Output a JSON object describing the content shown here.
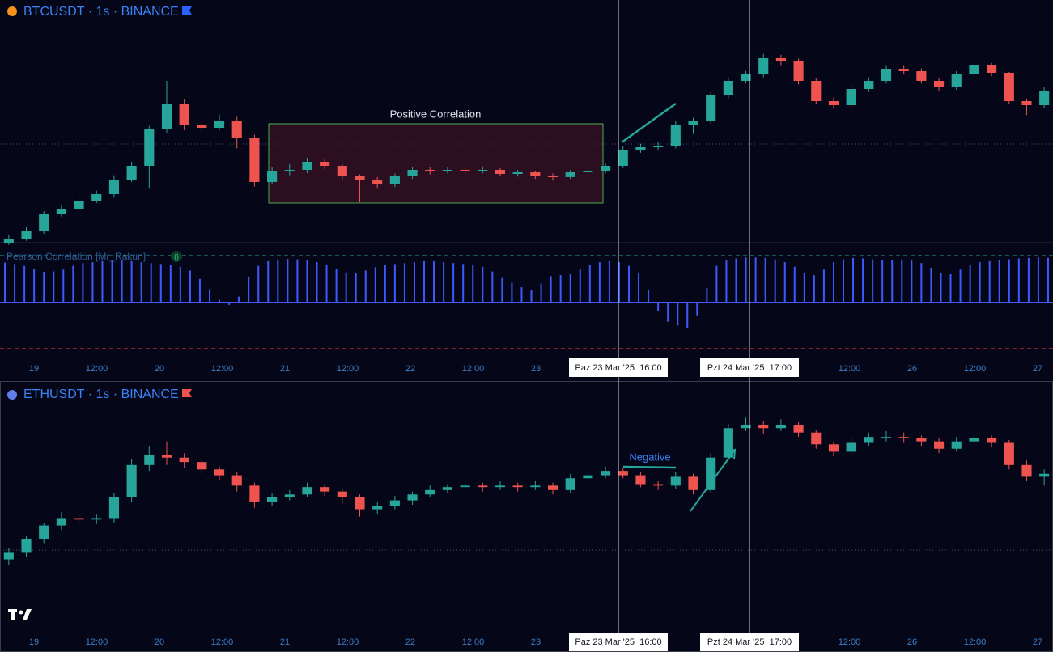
{
  "chart_data": [
    {
      "type": "candlestick",
      "title": "BTCUSDT · 1s · BINANCE",
      "up_color": "#26a69a",
      "down_color": "#ef5350",
      "ylim": [
        83100,
        88500
      ],
      "annotations": [
        "Positive Correlation"
      ],
      "ohlc": [
        [
          83100,
          83280,
          83050,
          83190
        ],
        [
          83190,
          83460,
          83140,
          83370
        ],
        [
          83370,
          83800,
          83300,
          83730
        ],
        [
          83730,
          83950,
          83680,
          83856
        ],
        [
          83856,
          84120,
          83800,
          84036
        ],
        [
          84036,
          84260,
          83980,
          84180
        ],
        [
          84180,
          84600,
          84100,
          84504
        ],
        [
          84504,
          84900,
          84450,
          84810
        ],
        [
          84810,
          85700,
          84300,
          85620
        ],
        [
          85620,
          86700,
          85550,
          86196
        ],
        [
          86196,
          86300,
          85600,
          85710
        ],
        [
          85710,
          85800,
          85560,
          85656
        ],
        [
          85656,
          85950,
          85600,
          85800
        ],
        [
          85800,
          85900,
          85200,
          85440
        ],
        [
          85440,
          85500,
          84350,
          84450
        ],
        [
          84450,
          84780,
          84400,
          84684
        ],
        [
          84684,
          84850,
          84600,
          84720
        ],
        [
          84720,
          84990,
          84650,
          84900
        ],
        [
          84900,
          84960,
          84740,
          84810
        ],
        [
          84810,
          84850,
          84500,
          84576
        ],
        [
          84576,
          84620,
          84000,
          84504
        ],
        [
          84504,
          84560,
          84300,
          84396
        ],
        [
          84396,
          84640,
          84340,
          84576
        ],
        [
          84576,
          84790,
          84520,
          84720
        ],
        [
          84720,
          84780,
          84620,
          84684
        ],
        [
          84684,
          84790,
          84640,
          84720
        ],
        [
          84720,
          84770,
          84620,
          84684
        ],
        [
          84684,
          84800,
          84640,
          84720
        ],
        [
          84720,
          84760,
          84580,
          84630
        ],
        [
          84630,
          84720,
          84570,
          84666
        ],
        [
          84666,
          84700,
          84520,
          84576
        ],
        [
          84576,
          84640,
          84480,
          84560
        ],
        [
          84560,
          84720,
          84520,
          84666
        ],
        [
          84666,
          84740,
          84620,
          84684
        ],
        [
          84684,
          84880,
          84640,
          84810
        ],
        [
          84810,
          85240,
          84760,
          85170
        ],
        [
          85170,
          85300,
          85100,
          85224
        ],
        [
          85224,
          85340,
          85150,
          85260
        ],
        [
          85260,
          85800,
          85200,
          85710
        ],
        [
          85710,
          85880,
          85520,
          85800
        ],
        [
          85800,
          86450,
          85750,
          86376
        ],
        [
          86376,
          86780,
          86300,
          86700
        ],
        [
          86700,
          86920,
          86650,
          86844
        ],
        [
          86844,
          87300,
          86780,
          87204
        ],
        [
          87204,
          87280,
          87050,
          87150
        ],
        [
          87150,
          87200,
          86620,
          86700
        ],
        [
          86700,
          86760,
          86180,
          86250
        ],
        [
          86250,
          86330,
          86080,
          86160
        ],
        [
          86160,
          86600,
          86100,
          86520
        ],
        [
          86520,
          86780,
          86450,
          86700
        ],
        [
          86700,
          87050,
          86640,
          86970
        ],
        [
          86970,
          87050,
          86840,
          86916
        ],
        [
          86916,
          86980,
          86640,
          86700
        ],
        [
          86700,
          86760,
          86480,
          86556
        ],
        [
          86556,
          86920,
          86500,
          86844
        ],
        [
          86844,
          87120,
          86780,
          87060
        ],
        [
          87060,
          87100,
          86800,
          86880
        ],
        [
          86880,
          86900,
          86180,
          86250
        ],
        [
          86250,
          86300,
          85940,
          86160
        ],
        [
          86160,
          86560,
          86100,
          86484
        ]
      ]
    },
    {
      "type": "bar",
      "title": "Pearson Correlation [Mr_Rakun]",
      "color": "#3d5afe",
      "ylim": [
        -1,
        1
      ],
      "levels": [
        {
          "value": 1,
          "color": "#26a69a"
        },
        {
          "value": -1,
          "color": "#f23645"
        }
      ],
      "values": [
        0.85,
        0.82,
        0.78,
        0.72,
        0.65,
        0.66,
        0.7,
        0.78,
        0.84,
        0.86,
        0.88,
        0.9,
        0.9,
        0.88,
        0.86,
        0.84,
        0.82,
        0.8,
        0.76,
        0.68,
        0.5,
        0.28,
        0.05,
        -0.06,
        0.12,
        0.55,
        0.78,
        0.88,
        0.92,
        0.93,
        0.92,
        0.9,
        0.86,
        0.8,
        0.72,
        0.64,
        0.62,
        0.68,
        0.75,
        0.8,
        0.82,
        0.84,
        0.86,
        0.88,
        0.88,
        0.86,
        0.84,
        0.82,
        0.8,
        0.76,
        0.66,
        0.52,
        0.42,
        0.32,
        0.26,
        0.4,
        0.56,
        0.58,
        0.6,
        0.7,
        0.8,
        0.86,
        0.88,
        0.86,
        0.78,
        0.62,
        0.25,
        -0.2,
        -0.42,
        -0.5,
        -0.56,
        -0.3,
        0.3,
        0.78,
        0.9,
        0.94,
        0.96,
        0.96,
        0.95,
        0.92,
        0.86,
        0.76,
        0.62,
        0.58,
        0.7,
        0.86,
        0.92,
        0.95,
        0.94,
        0.92,
        0.9,
        0.9,
        0.92,
        0.9,
        0.84,
        0.74,
        0.62,
        0.6,
        0.7,
        0.8,
        0.86,
        0.88,
        0.9,
        0.92,
        0.94,
        0.95,
        0.96,
        0.95
      ],
      "x_tick_labels": [
        "19",
        "12:00",
        "20",
        "12:00",
        "21",
        "12:00",
        "22",
        "12:00",
        "23",
        null,
        null,
        null,
        null,
        "12:00",
        "26",
        "12:00",
        "27"
      ],
      "crosshair_labels": [
        "Paz 23 Mar '25  16:00",
        "Pzt 24 Mar '25  17:00"
      ]
    },
    {
      "type": "candlestick",
      "title": "ETHUSDT · 1s · BINANCE",
      "up_color": "#26a69a",
      "down_color": "#ef5350",
      "ylim": [
        1940,
        2110
      ],
      "annotations": [
        "Negative"
      ],
      "ohlc": [
        [
          1994,
          2002,
          1990,
          1999
        ],
        [
          1999,
          2010,
          1996,
          2008
        ],
        [
          2008,
          2019,
          2005,
          2017
        ],
        [
          2017,
          2026,
          2014,
          2022
        ],
        [
          2022,
          2025,
          2018,
          2021
        ],
        [
          2021,
          2025,
          2018,
          2022
        ],
        [
          2022,
          2039,
          2019,
          2036
        ],
        [
          2036,
          2062,
          2033,
          2058
        ],
        [
          2058,
          2071,
          2054,
          2065
        ],
        [
          2065,
          2074,
          2058,
          2063
        ],
        [
          2063,
          2066,
          2056,
          2060
        ],
        [
          2060,
          2062,
          2052,
          2055
        ],
        [
          2055,
          2057,
          2048,
          2051
        ],
        [
          2051,
          2053,
          2040,
          2044
        ],
        [
          2044,
          2046,
          2029,
          2033
        ],
        [
          2033,
          2039,
          2030,
          2036
        ],
        [
          2036,
          2041,
          2034,
          2038
        ],
        [
          2038,
          2046,
          2036,
          2043
        ],
        [
          2043,
          2045,
          2037,
          2040
        ],
        [
          2040,
          2042,
          2032,
          2036
        ],
        [
          2036,
          2038,
          2023,
          2028
        ],
        [
          2028,
          2033,
          2025,
          2030
        ],
        [
          2030,
          2037,
          2028,
          2034
        ],
        [
          2034,
          2040,
          2031,
          2038
        ],
        [
          2038,
          2044,
          2036,
          2041
        ],
        [
          2041,
          2045,
          2039,
          2043
        ],
        [
          2043,
          2047,
          2041,
          2044
        ],
        [
          2044,
          2046,
          2040,
          2043
        ],
        [
          2043,
          2047,
          2041,
          2044
        ],
        [
          2044,
          2046,
          2040,
          2043
        ],
        [
          2043,
          2047,
          2041,
          2044
        ],
        [
          2044,
          2046,
          2038,
          2041
        ],
        [
          2041,
          2052,
          2039,
          2049
        ],
        [
          2049,
          2054,
          2047,
          2051
        ],
        [
          2051,
          2057,
          2049,
          2054
        ],
        [
          2054,
          2056,
          2049,
          2051
        ],
        [
          2051,
          2053,
          2043,
          2045
        ],
        [
          2045,
          2047,
          2041,
          2044
        ],
        [
          2044,
          2053,
          2042,
          2050
        ],
        [
          2050,
          2052,
          2038,
          2041
        ],
        [
          2041,
          2066,
          2039,
          2063
        ],
        [
          2063,
          2086,
          2061,
          2083
        ],
        [
          2083,
          2090,
          2081,
          2085
        ],
        [
          2085,
          2088,
          2079,
          2083
        ],
        [
          2083,
          2089,
          2081,
          2085
        ],
        [
          2085,
          2087,
          2077,
          2080
        ],
        [
          2080,
          2082,
          2069,
          2072
        ],
        [
          2072,
          2074,
          2064,
          2067
        ],
        [
          2067,
          2076,
          2065,
          2073
        ],
        [
          2073,
          2080,
          2071,
          2077
        ],
        [
          2077,
          2081,
          2074,
          2077
        ],
        [
          2077,
          2080,
          2073,
          2076
        ],
        [
          2076,
          2078,
          2071,
          2074
        ],
        [
          2074,
          2076,
          2066,
          2069
        ],
        [
          2069,
          2077,
          2067,
          2074
        ],
        [
          2074,
          2079,
          2072,
          2076
        ],
        [
          2076,
          2078,
          2070,
          2073
        ],
        [
          2073,
          2075,
          2055,
          2058
        ],
        [
          2058,
          2061,
          2047,
          2050
        ],
        [
          2050,
          2055,
          2044,
          2052
        ]
      ],
      "x_tick_labels": [
        "19",
        "12:00",
        "20",
        "12:00",
        "21",
        "12:00",
        "22",
        "12:00",
        "23",
        null,
        null,
        null,
        null,
        "12:00",
        "26",
        "12:00",
        "27"
      ],
      "crosshair_labels": [
        "Paz 23 Mar '25  16:00",
        "Pzt 24 Mar '25  17:00"
      ]
    }
  ]
}
